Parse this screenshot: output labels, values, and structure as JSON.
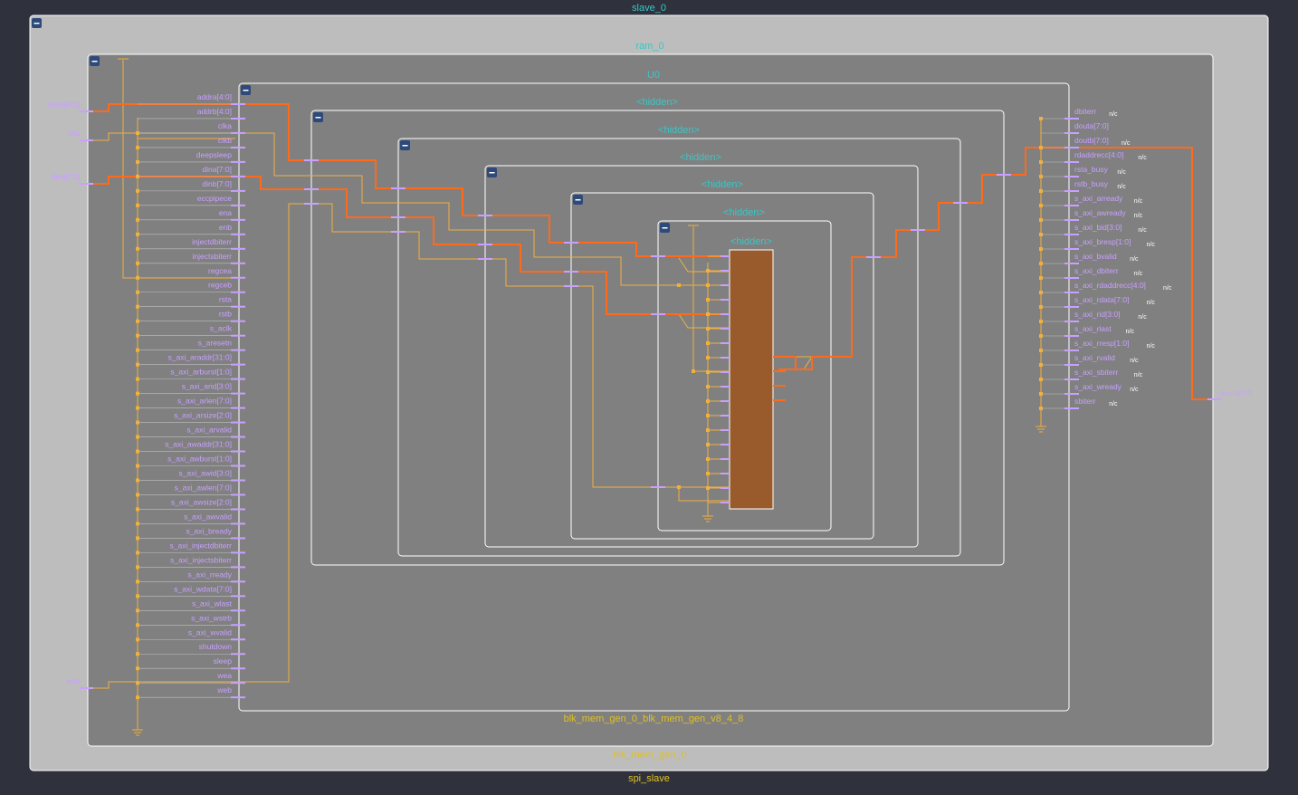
{
  "colors": {
    "background": "#2f323d",
    "outer_box": "#bdbdbd",
    "inner_box": "#808080",
    "box_border": "#ffffff",
    "title_cyan": "#3ac6c6",
    "title_yellow": "#e0c020",
    "pin_label": "#c8a0ff",
    "pin_marker": "#c8a0ff",
    "net_bus": "#ff6a1a",
    "net_wire": "#f0b040",
    "primitive_fill": "#9a5b2c",
    "nc_label": "#ffffff",
    "collapse_button": "#2e4a7a"
  },
  "titles": {
    "top": "slave_0",
    "ram": "ram_0",
    "u0": "U0",
    "hidden": "<hidden>",
    "blk_mem": "blk_mem_gen_0_blk_mem_gen_v8_4_8",
    "blk_mem_outer": "blk_mem_gen_0",
    "spi": "spi_slave"
  },
  "ports": {
    "left": [
      "addra[4:0]",
      "clka",
      "dina[7:0]",
      "wea"
    ],
    "right": [
      "douta[7:0]"
    ]
  },
  "u0_inputs": [
    "addra[4:0]",
    "addrb[4:0]",
    "clka",
    "clkb",
    "deepsleep",
    "dina[7:0]",
    "dinb[7:0]",
    "eccpipece",
    "ena",
    "enb",
    "injectdbiterr",
    "injectsbiterr",
    "regcea",
    "regceb",
    "rsta",
    "rstb",
    "s_aclk",
    "s_aresetn",
    "s_axi_araddr[31:0]",
    "s_axi_arburst[1:0]",
    "s_axi_arid[3:0]",
    "s_axi_arlen[7:0]",
    "s_axi_arsize[2:0]",
    "s_axi_arvalid",
    "s_axi_awaddr[31:0]",
    "s_axi_awburst[1:0]",
    "s_axi_awid[3:0]",
    "s_axi_awlen[7:0]",
    "s_axi_awsize[2:0]",
    "s_axi_awvalid",
    "s_axi_bready",
    "s_axi_injectdbiterr",
    "s_axi_injectsbiterr",
    "s_axi_rready",
    "s_axi_wdata[7:0]",
    "s_axi_wlast",
    "s_axi_wstrb",
    "s_axi_wvalid",
    "shutdown",
    "sleep",
    "wea",
    "web"
  ],
  "u0_outputs": [
    "dbiterr",
    "douta[7:0]",
    "doutb[7:0]",
    "rdaddrecc[4:0]",
    "rsta_busy",
    "rstb_busy",
    "s_axi_arready",
    "s_axi_awready",
    "s_axi_bid[3:0]",
    "s_axi_bresp[1:0]",
    "s_axi_bvalid",
    "s_axi_dbiterr",
    "s_axi_rdaddrecc[4:0]",
    "s_axi_rdata[7:0]",
    "s_axi_rid[3:0]",
    "s_axi_rlast",
    "s_axi_rresp[1:0]",
    "s_axi_rvalid",
    "s_axi_sbiterr",
    "s_axi_wready",
    "sbiterr"
  ],
  "nc_label": "n/c"
}
